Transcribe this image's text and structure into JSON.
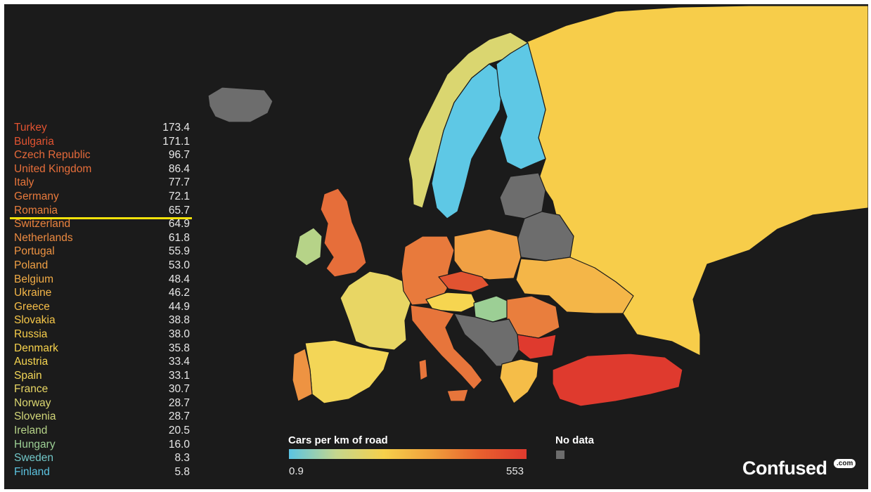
{
  "legend": {
    "title": "Cars per km of road",
    "min": "0.9",
    "max": "553",
    "no_data": "No data",
    "no_data_color": "#6d6d6d",
    "gradient": [
      "#5bc4e3",
      "#c5d68d",
      "#f6d04b",
      "#f0a03c",
      "#e8612e",
      "#df3a2e"
    ]
  },
  "highlighted_country": "Romania",
  "highlight_color": "#f3e20a",
  "brand": {
    "name": "Confused",
    "suffix": ".com"
  },
  "countries": [
    {
      "name": "Turkey",
      "value": "173.4",
      "color": "#e15331"
    },
    {
      "name": "Bulgaria",
      "value": "171.1",
      "color": "#e15331"
    },
    {
      "name": "Czech Republic",
      "value": "96.7",
      "color": "#e4693a"
    },
    {
      "name": "United Kingdom",
      "value": "86.4",
      "color": "#e66e3a"
    },
    {
      "name": "Italy",
      "value": "77.7",
      "color": "#e7753b"
    },
    {
      "name": "Germany",
      "value": "72.1",
      "color": "#e87a3c"
    },
    {
      "name": "Romania",
      "value": "65.7",
      "color": "#e97e3d"
    },
    {
      "name": "Switzerland",
      "value": "64.9",
      "color": "#ea823e"
    },
    {
      "name": "Netherlands",
      "value": "61.8",
      "color": "#ec8a40"
    },
    {
      "name": "Portugal",
      "value": "55.9",
      "color": "#ee9342"
    },
    {
      "name": "Poland",
      "value": "53.0",
      "color": "#f0a044"
    },
    {
      "name": "Belgium",
      "value": "48.4",
      "color": "#f2ac46"
    },
    {
      "name": "Ukraine",
      "value": "46.2",
      "color": "#f4b648"
    },
    {
      "name": "Greece",
      "value": "44.9",
      "color": "#f5bd48"
    },
    {
      "name": "Slovakia",
      "value": "38.8",
      "color": "#f6c749"
    },
    {
      "name": "Russia",
      "value": "38.0",
      "color": "#f7cd4a"
    },
    {
      "name": "Denmark",
      "value": "35.8",
      "color": "#f7d24c"
    },
    {
      "name": "Austria",
      "value": "33.4",
      "color": "#f6d550"
    },
    {
      "name": "Spain",
      "value": "33.1",
      "color": "#f3d657"
    },
    {
      "name": "France",
      "value": "30.7",
      "color": "#e8d664"
    },
    {
      "name": "Norway",
      "value": "28.7",
      "color": "#dad670"
    },
    {
      "name": "Slovenia",
      "value": "28.7",
      "color": "#d2d678"
    },
    {
      "name": "Ireland",
      "value": "20.5",
      "color": "#b6d388"
    },
    {
      "name": "Hungary",
      "value": "16.0",
      "color": "#9ccf95"
    },
    {
      "name": "Sweden",
      "value": "8.3",
      "color": "#72c7c8"
    },
    {
      "name": "Finland",
      "value": "5.8",
      "color": "#5cc3e0"
    }
  ],
  "map_regions": [
    {
      "country": "Russia",
      "color": "#f7cd4a"
    },
    {
      "country": "Norway",
      "color": "#dad670"
    },
    {
      "country": "Sweden",
      "color": "#5ec8e5"
    },
    {
      "country": "Finland",
      "color": "#5ec8e5"
    },
    {
      "country": "Iceland",
      "color": "#6d6d6d"
    },
    {
      "country": "Baltics",
      "color": "#6d6d6d"
    },
    {
      "country": "Belarus",
      "color": "#6d6d6d"
    },
    {
      "country": "United Kingdom",
      "color": "#e66e3a"
    },
    {
      "country": "Ireland",
      "color": "#b6d388"
    },
    {
      "country": "France",
      "color": "#e8d664"
    },
    {
      "country": "Spain",
      "color": "#f3d657"
    },
    {
      "country": "Portugal",
      "color": "#ee9342"
    },
    {
      "country": "Germany",
      "color": "#e87a3c"
    },
    {
      "country": "Poland",
      "color": "#f0a044"
    },
    {
      "country": "Ukraine",
      "color": "#f4b648"
    },
    {
      "country": "Italy",
      "color": "#e7753b"
    },
    {
      "country": "Czech Republic",
      "color": "#e15331"
    },
    {
      "country": "Austria",
      "color": "#f6d550"
    },
    {
      "country": "Hungary",
      "color": "#9ccf95"
    },
    {
      "country": "Romania",
      "color": "#e97e3d"
    },
    {
      "country": "Bulgaria",
      "color": "#df3a2e"
    },
    {
      "country": "Greece",
      "color": "#f5bd48"
    },
    {
      "country": "Turkey",
      "color": "#df3a2e"
    },
    {
      "country": "Balkans",
      "color": "#6d6d6d"
    }
  ]
}
